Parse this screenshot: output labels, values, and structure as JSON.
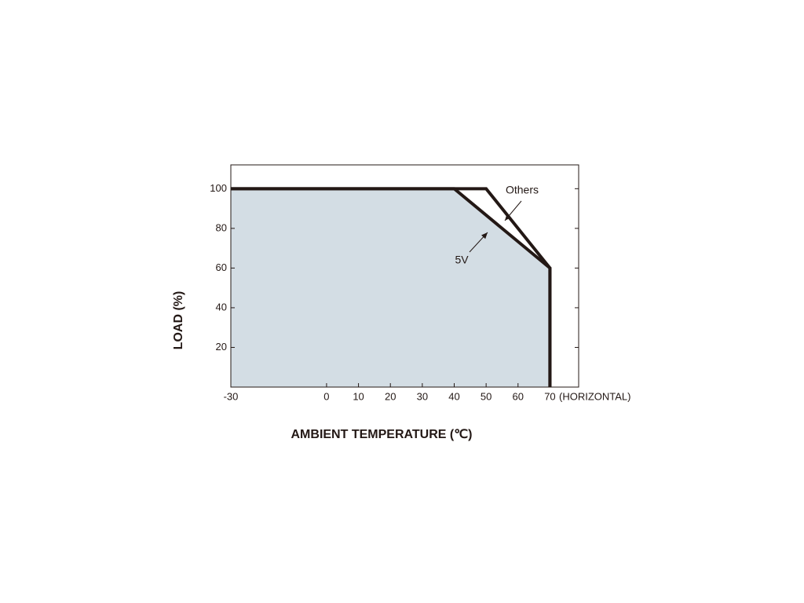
{
  "chart_data": {
    "type": "line",
    "xlabel": "AMBIENT TEMPERATURE (℃)",
    "ylabel": "LOAD (%)",
    "x_unit_note": "(HORIZONTAL)",
    "series": [
      {
        "name": "Others",
        "color": "#231815",
        "x": [
          -30,
          50,
          70,
          70
        ],
        "values": [
          100,
          100,
          60,
          0
        ]
      },
      {
        "name": "5V",
        "color": "#231815",
        "x": [
          -30,
          40,
          70,
          70
        ],
        "values": [
          100,
          100,
          60,
          0
        ],
        "fill": "#d3dde4"
      }
    ],
    "xlim": [
      -30,
      79
    ],
    "ylim": [
      0,
      112
    ],
    "xticks": [
      -30,
      0,
      10,
      20,
      30,
      40,
      50,
      60,
      70
    ],
    "yticks": [
      20,
      40,
      60,
      80,
      100
    ],
    "grid": false
  }
}
